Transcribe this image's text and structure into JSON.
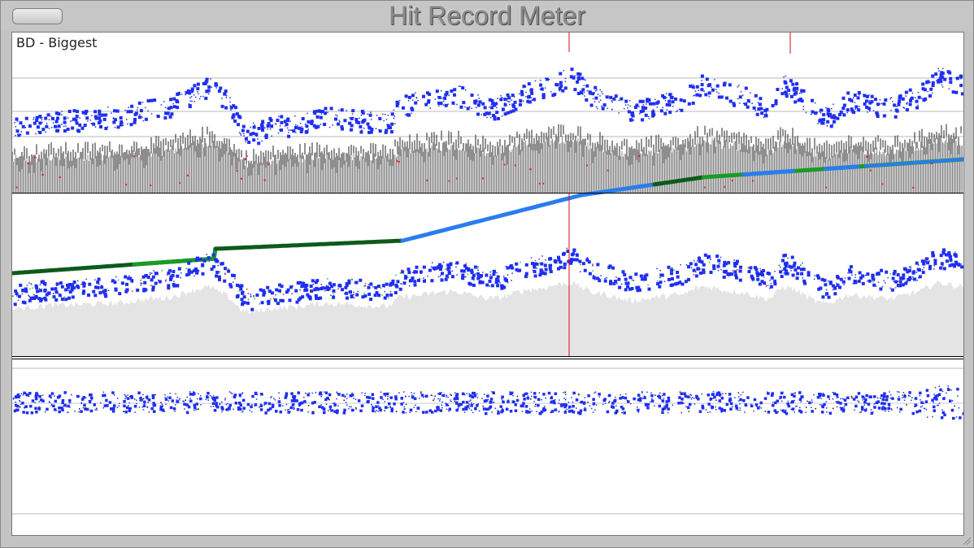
{
  "window": {
    "title": "Hit Record Meter"
  },
  "panel": {
    "track_label": "BD - Biggest"
  },
  "markers": {
    "count_top": 2,
    "count_mid": 1
  },
  "colors": {
    "background": "#ffffff",
    "hit_points": "#1f2ff0",
    "trend_blue": "#2a7cf0",
    "trend_green": "#1a9a28",
    "trend_dark_green": "#0d5a1a",
    "waveform": "#5a5a5a",
    "velocity_fill": "#e4e4e4",
    "marker_red": "#d01010",
    "accent_red": "#e02020",
    "accent_green": "#22c022",
    "dark_points": "#111111",
    "gridline": "#b8b8b8",
    "divider": "#000000"
  }
}
